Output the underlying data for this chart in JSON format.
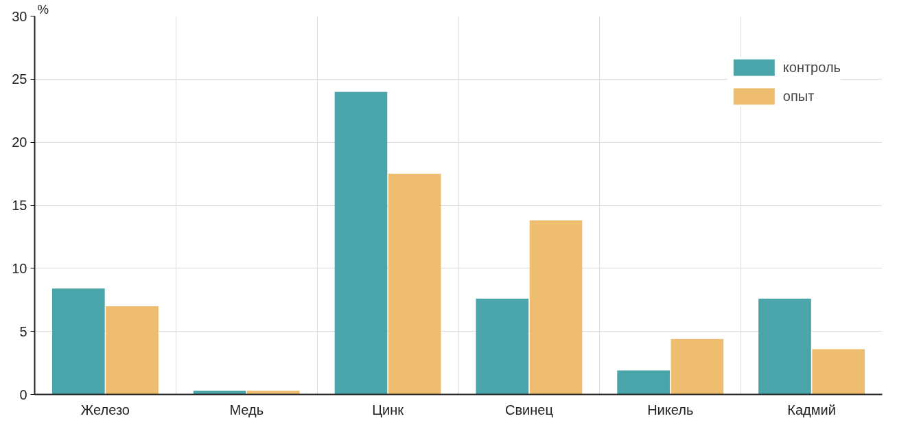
{
  "chart_data": {
    "type": "bar",
    "ylabel": "%",
    "categories": [
      "Железо",
      "Медь",
      "Цинк",
      "Свинец",
      "Никель",
      "Кадмий"
    ],
    "series": [
      {
        "name": "контроль",
        "color": "#4aa5aa",
        "values": [
          8.4,
          0.3,
          24.0,
          7.6,
          1.9,
          7.6
        ]
      },
      {
        "name": "опыт",
        "color": "#eebd6f",
        "values": [
          7.0,
          0.3,
          17.5,
          13.8,
          4.4,
          3.6
        ]
      }
    ],
    "ylim": [
      0,
      30
    ],
    "yticks": [
      0,
      5,
      10,
      15,
      20,
      25,
      30
    ],
    "grid": true,
    "legend": "top right"
  }
}
